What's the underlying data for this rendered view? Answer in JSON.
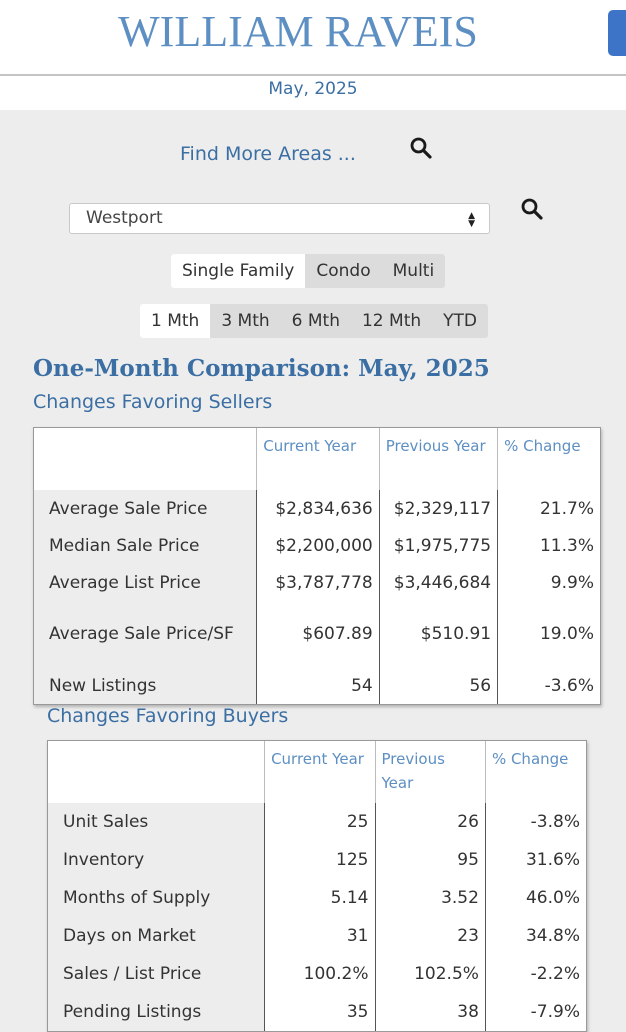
{
  "brand": {
    "name": "WILLIAM RAVEIS"
  },
  "report_month": "May, 2025",
  "find_more": "Find More Areas ...",
  "icons": {
    "search": "search-icon",
    "header_action": "header-action-button"
  },
  "area_select": {
    "value": "Westport"
  },
  "property_types": [
    "Single Family",
    "Condo",
    "Multi"
  ],
  "property_active": 0,
  "periods": [
    "1 Mth",
    "3 Mth",
    "6 Mth",
    "12 Mth",
    "YTD"
  ],
  "period_active": 0,
  "comparison_title": "One-Month Comparison:  May, 2025",
  "sellers": {
    "title": "Changes Favoring Sellers",
    "headers": [
      "Current Year",
      "Previous Year",
      "% Change"
    ],
    "rows": [
      {
        "label": "Average Sale Price",
        "current": "$2,834,636",
        "previous": "$2,329,117",
        "change": "21.7%"
      },
      {
        "label": "Median Sale Price",
        "current": "$2,200,000",
        "previous": "$1,975,775",
        "change": "11.3%"
      },
      {
        "label": "Average List Price",
        "current": "$3,787,778",
        "previous": "$3,446,684",
        "change": "9.9%"
      },
      {
        "label": "Average Sale Price/SF",
        "current": "$607.89",
        "previous": "$510.91",
        "change": "19.0%"
      },
      {
        "label": "New Listings",
        "current": "54",
        "previous": "56",
        "change": "-3.6%"
      }
    ]
  },
  "buyers": {
    "title": "Changes Favoring Buyers",
    "headers": [
      "Current Year",
      "Previous Year",
      "% Change"
    ],
    "rows": [
      {
        "label": "Unit Sales",
        "current": "25",
        "previous": "26",
        "change": "-3.8%"
      },
      {
        "label": "Inventory",
        "current": "125",
        "previous": "95",
        "change": "31.6%"
      },
      {
        "label": "Months of Supply",
        "current": "5.14",
        "previous": "3.52",
        "change": "46.0%"
      },
      {
        "label": "Days on Market",
        "current": "31",
        "previous": "23",
        "change": "34.8%"
      },
      {
        "label": "Sales / List Price",
        "current": "100.2%",
        "previous": "102.5%",
        "change": "-2.2%"
      },
      {
        "label": "Pending Listings",
        "current": "35",
        "previous": "38",
        "change": "-7.9%"
      }
    ]
  }
}
